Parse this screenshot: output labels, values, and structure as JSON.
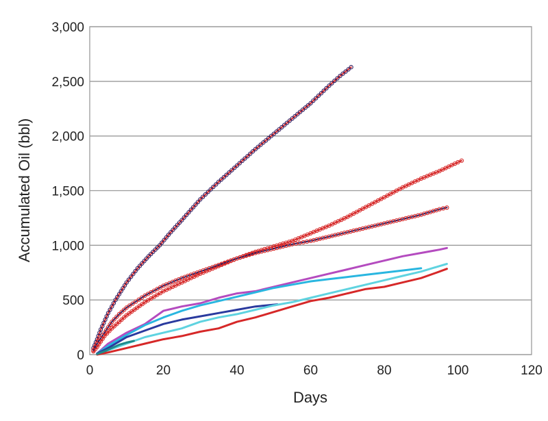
{
  "chart_data": {
    "type": "line",
    "xlabel": "Days",
    "ylabel": "Accumulated Oil (bbl)",
    "xlim": [
      0,
      120
    ],
    "ylim": [
      0,
      3000
    ],
    "xticks": [
      0,
      20,
      40,
      60,
      80,
      100,
      120
    ],
    "yticks": [
      0,
      500,
      1000,
      1500,
      2000,
      2500,
      3000
    ],
    "xtick_labels": [
      "0",
      "20",
      "40",
      "60",
      "80",
      "100",
      "120"
    ],
    "ytick_labels": [
      "0",
      "500",
      "1,000",
      "1,500",
      "2,000",
      "2,500",
      "3,000"
    ],
    "grid": "horizontal",
    "legend": "none",
    "series": [
      {
        "color": "#d62828",
        "marker_color": "#2e1a5e",
        "marker": "circle",
        "x": [
          1,
          2,
          3,
          5,
          7,
          10,
          13,
          16,
          19,
          22,
          25,
          30,
          35,
          40,
          45,
          50,
          55,
          60,
          65,
          68,
          71
        ],
        "y": [
          60,
          140,
          230,
          380,
          500,
          660,
          790,
          900,
          1000,
          1120,
          1230,
          1420,
          1580,
          1730,
          1880,
          2020,
          2160,
          2300,
          2460,
          2550,
          2630
        ]
      },
      {
        "color": "#d62828",
        "marker_color": "#d62828",
        "marker": "circle",
        "x": [
          1,
          2,
          4,
          6,
          8,
          10,
          15,
          20,
          25,
          30,
          35,
          40,
          45,
          50,
          55,
          60,
          65,
          70,
          75,
          80,
          85,
          90,
          95,
          100,
          101
        ],
        "y": [
          30,
          70,
          170,
          240,
          300,
          360,
          480,
          580,
          660,
          740,
          810,
          880,
          940,
          990,
          1040,
          1110,
          1180,
          1260,
          1350,
          1440,
          1530,
          1610,
          1680,
          1760,
          1775
        ]
      },
      {
        "color": "#2e1a5e",
        "marker_color": "#d62828",
        "marker": "circle",
        "x": [
          1,
          2,
          4,
          6,
          8,
          10,
          15,
          20,
          25,
          30,
          35,
          40,
          45,
          50,
          55,
          60,
          65,
          70,
          75,
          80,
          85,
          90,
          95,
          97
        ],
        "y": [
          40,
          100,
          200,
          300,
          370,
          430,
          540,
          630,
          700,
          760,
          820,
          880,
          930,
          970,
          1010,
          1040,
          1080,
          1120,
          1160,
          1200,
          1240,
          1280,
          1330,
          1345
        ]
      },
      {
        "color": "#b44bbf",
        "x": [
          2,
          5,
          10,
          15,
          20,
          25,
          30,
          35,
          40,
          45,
          50,
          55,
          60,
          65,
          70,
          75,
          80,
          85,
          90,
          95,
          97
        ],
        "y": [
          10,
          100,
          200,
          280,
          400,
          440,
          470,
          520,
          560,
          580,
          620,
          660,
          700,
          740,
          780,
          820,
          860,
          900,
          930,
          960,
          975
        ]
      },
      {
        "color": "#29b6e0",
        "x": [
          2,
          5,
          10,
          15,
          20,
          25,
          30,
          35,
          40,
          45,
          50,
          55,
          60,
          65,
          70,
          75,
          80,
          85,
          90
        ],
        "y": [
          10,
          80,
          180,
          270,
          340,
          400,
          450,
          490,
          530,
          570,
          610,
          640,
          670,
          690,
          710,
          730,
          750,
          770,
          790
        ]
      },
      {
        "color": "#2a3a9e",
        "x": [
          2,
          5,
          10,
          15,
          20,
          25,
          30,
          35,
          40,
          45,
          51
        ],
        "y": [
          10,
          60,
          160,
          220,
          280,
          320,
          350,
          380,
          410,
          440,
          460
        ]
      },
      {
        "color": "#5fd3e0",
        "x": [
          2,
          5,
          10,
          15,
          20,
          25,
          30,
          35,
          40,
          45,
          50,
          55,
          60,
          65,
          70,
          75,
          80,
          85,
          90,
          95,
          97
        ],
        "y": [
          5,
          40,
          100,
          160,
          200,
          240,
          300,
          340,
          370,
          410,
          450,
          480,
          520,
          560,
          600,
          640,
          680,
          720,
          760,
          810,
          830
        ]
      },
      {
        "color": "#d62828",
        "x": [
          2,
          5,
          10,
          15,
          20,
          25,
          30,
          35,
          40,
          45,
          50,
          55,
          60,
          65,
          70,
          75,
          80,
          85,
          90,
          95,
          97
        ],
        "y": [
          0,
          20,
          60,
          100,
          140,
          170,
          210,
          240,
          300,
          340,
          390,
          440,
          490,
          520,
          560,
          600,
          620,
          660,
          700,
          760,
          785
        ]
      },
      {
        "color": "#1f8a8a",
        "x": [
          2,
          4,
          6,
          8,
          10,
          12
        ],
        "y": [
          5,
          30,
          60,
          90,
          110,
          125
        ]
      }
    ]
  }
}
